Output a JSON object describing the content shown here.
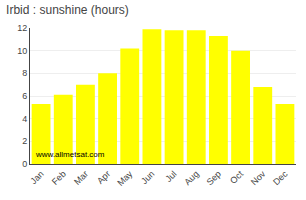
{
  "chart_data": {
    "type": "bar",
    "title": "Irbid : sunshine (hours)",
    "categories": [
      "Jan",
      "Feb",
      "Mar",
      "Apr",
      "May",
      "Jun",
      "Jul",
      "Aug",
      "Sep",
      "Oct",
      "Nov",
      "Dec"
    ],
    "values": [
      5.3,
      6.1,
      7.0,
      8.0,
      10.2,
      11.9,
      11.8,
      11.8,
      11.3,
      10.0,
      6.8,
      5.3
    ],
    "color": "#ffff00",
    "ylim": [
      0,
      12
    ],
    "yticks": [
      0,
      2,
      4,
      6,
      8,
      10,
      12
    ],
    "grid": true,
    "annotations": [
      "www.allmetsat.com"
    ]
  }
}
